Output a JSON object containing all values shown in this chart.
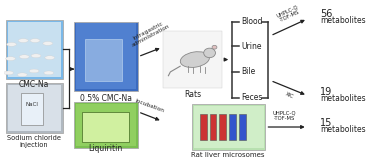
{
  "bg_color": "white",
  "cmc_na_label": "CMC-Na",
  "nacl_label": "Sodium chloride\ninjection",
  "beaker_label": "0.5% CMC-Na",
  "liquiritin_label": "Liquiritin",
  "rats_label": "Rats",
  "intragastric_label": "Intragastric\nadministration",
  "incubation_label": "Incubation",
  "microsomes_label": "Rat liver microsomes",
  "blood_label": "Blood",
  "urine_label": "Urine",
  "bile_label": "Bile",
  "feces_label": "Feces",
  "uhplc_label1": "UHPLC-Q\n-TOF-MS",
  "uhplc_label2": "XIC",
  "uhplc_label3": "UHPLC-Q\n-TOF-MS",
  "num_56": "56",
  "met_56": "metabolites",
  "num_19": "19",
  "met_19": "metabolites",
  "num_15": "15",
  "met_15": "metabolites",
  "cmc_bg": "#7ab8e8",
  "nacl_bg": "#b0b8c0",
  "beaker_bg": "#3a6abf",
  "liquiritin_bg": "#7abf50",
  "microsomes_bg": "#b8e0b0",
  "arrow_color": "#222222",
  "text_color": "#222222",
  "bracket_color": "#333333",
  "photo_edge": "#999999"
}
